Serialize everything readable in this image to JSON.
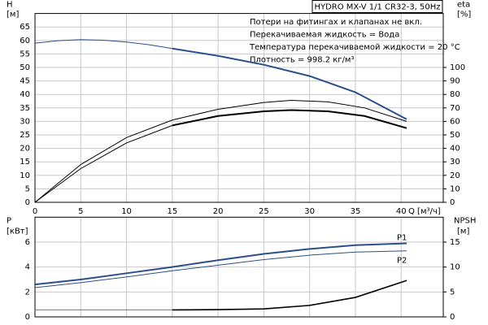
{
  "chart_data": [
    {
      "type": "line",
      "title": "HYDRO MX-V 1/1 CR32-3, 50Hz",
      "annotations": [
        "Потери на фитингах и клапанах не вкл.",
        "Перекачиваемая жидкость = Вода",
        "Температура перекачиваемой жидкости = 20 °C",
        "Плотность = 998.2 кг/м³"
      ],
      "ylabel": "H",
      "yunit": "[м]",
      "y2label": "eta",
      "y2unit": "[%]",
      "xlabel": "Q [м³/ч]",
      "xlim": [
        0,
        44.6
      ],
      "xticks": [
        0,
        5,
        10,
        15,
        20,
        25,
        30,
        35,
        40
      ],
      "show_xtick_labels": true,
      "ylim": [
        0,
        70
      ],
      "yticks": [
        0,
        5,
        10,
        15,
        20,
        25,
        30,
        35,
        40,
        45,
        50,
        55,
        60,
        65
      ],
      "y2lim": [
        0,
        140
      ],
      "y2ticks": [
        0,
        10,
        20,
        30,
        40,
        50,
        60,
        70,
        80,
        90,
        100
      ],
      "grid": true,
      "series": [
        {
          "color": "#2b4f8c",
          "width": 1,
          "x": [
            0,
            2.5,
            5,
            7.5,
            10,
            12.5,
            15
          ],
          "values": [
            59,
            59.9,
            60.3,
            60.1,
            59.4,
            58.4,
            57
          ]
        },
        {
          "color": "#2b4f8c",
          "width": 2,
          "x": [
            15,
            20,
            25,
            30,
            35,
            40.6
          ],
          "values": [
            57,
            54.3,
            51,
            46.8,
            40.8,
            30.8
          ]
        },
        {
          "color": "#000000",
          "width": 1,
          "axis": "y2",
          "x": [
            0,
            5,
            10,
            15,
            20,
            25,
            28,
            32,
            36,
            40.6
          ],
          "values": [
            0,
            28,
            48,
            61,
            69,
            74,
            75.6,
            74.5,
            70,
            60
          ]
        },
        {
          "color": "#000000",
          "width": 1,
          "axis": "y2",
          "x": [
            0,
            5,
            10,
            15
          ],
          "values": [
            0,
            25,
            44,
            57
          ]
        },
        {
          "color": "#000000",
          "width": 2,
          "axis": "y2",
          "x": [
            15,
            20,
            25,
            28,
            32,
            36,
            40.6
          ],
          "values": [
            57,
            64,
            67.5,
            68.4,
            67.5,
            64,
            55
          ]
        }
      ]
    },
    {
      "type": "line",
      "ylabel": "P",
      "yunit": "[кВт]",
      "y2label": "NPSH",
      "y2unit": "[м]",
      "xlim": [
        0,
        44.6
      ],
      "xticks": [
        0,
        5,
        10,
        15,
        20,
        25,
        30,
        35,
        40
      ],
      "show_xtick_labels": false,
      "ylim": [
        0,
        8
      ],
      "yticks": [
        0,
        2,
        4,
        6
      ],
      "y2lim": [
        0,
        20
      ],
      "y2ticks": [
        0,
        5,
        10,
        15
      ],
      "grid": true,
      "series": [
        {
          "name": "P1",
          "color": "#2b4f8c",
          "width": 2,
          "x": [
            0,
            5,
            10,
            15,
            20,
            25,
            30,
            35,
            40.6
          ],
          "values": [
            2.6,
            3.0,
            3.5,
            4.0,
            4.55,
            5.05,
            5.45,
            5.75,
            5.9
          ]
        },
        {
          "name": "P2",
          "color": "#2b4f8c",
          "width": 1,
          "x": [
            0,
            5,
            10,
            15,
            20,
            25,
            30,
            35,
            40.6
          ],
          "values": [
            2.35,
            2.75,
            3.2,
            3.7,
            4.15,
            4.6,
            4.95,
            5.2,
            5.3
          ]
        },
        {
          "color": "#777777",
          "width": 1,
          "axis": "y2",
          "x": [
            0,
            15
          ],
          "values": [
            1.4,
            1.4
          ]
        },
        {
          "color": "#000000",
          "width": 1.6,
          "axis": "y2",
          "x": [
            15,
            20,
            25,
            30,
            35,
            40.6
          ],
          "values": [
            1.4,
            1.45,
            1.6,
            2.3,
            3.9,
            7.3
          ]
        }
      ]
    }
  ]
}
